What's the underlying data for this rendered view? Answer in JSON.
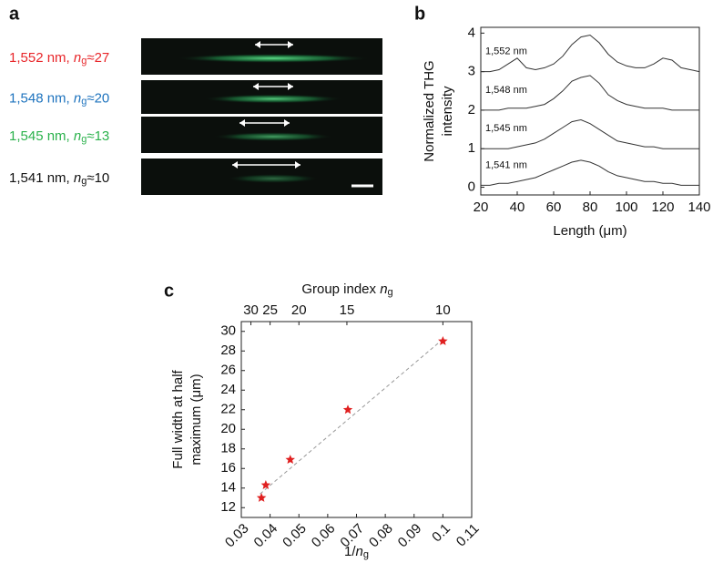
{
  "panel_a": {
    "label": "a",
    "rows": [
      {
        "text": "1,552 nm, ",
        "n": "n",
        "sub": "g",
        "approx": "≈27",
        "color": "#e8262a"
      },
      {
        "text": "1,548 nm, ",
        "n": "n",
        "sub": "g",
        "approx": "≈20",
        "color": "#1e73be"
      },
      {
        "text": "1,545 nm, ",
        "n": "n",
        "sub": "g",
        "approx": "≈13",
        "color": "#2bb24c"
      },
      {
        "text": "1,541 nm, ",
        "n": "n",
        "sub": "g",
        "approx": "≈10",
        "color": "#111111"
      }
    ]
  },
  "chart_data": [
    {
      "type": "line",
      "label": "b",
      "ylabel": [
        "Normalized THG",
        "intensity"
      ],
      "xlabel": "Length (μm)",
      "x": [
        20,
        25,
        30,
        35,
        40,
        45,
        50,
        55,
        60,
        65,
        70,
        75,
        80,
        85,
        90,
        95,
        100,
        105,
        110,
        115,
        120,
        125,
        130,
        135,
        140
      ],
      "xlim": [
        20,
        140
      ],
      "xticks": [
        20,
        40,
        60,
        80,
        100,
        120,
        140
      ],
      "ylim": [
        -0.2,
        4.15
      ],
      "yticks": [
        0,
        1,
        2,
        3,
        4
      ],
      "series": [
        {
          "name": "1,552 nm",
          "color": "#333333",
          "values": [
            3.0,
            3.0,
            3.05,
            3.2,
            3.35,
            3.1,
            3.05,
            3.1,
            3.2,
            3.4,
            3.7,
            3.9,
            3.95,
            3.75,
            3.45,
            3.25,
            3.15,
            3.1,
            3.1,
            3.2,
            3.35,
            3.3,
            3.1,
            3.05,
            3.0
          ]
        },
        {
          "name": "1,548 nm",
          "color": "#333333",
          "values": [
            2.0,
            2.0,
            2.0,
            2.05,
            2.05,
            2.05,
            2.1,
            2.15,
            2.3,
            2.5,
            2.75,
            2.85,
            2.9,
            2.7,
            2.4,
            2.25,
            2.15,
            2.1,
            2.05,
            2.05,
            2.05,
            2.0,
            2.0,
            2.0,
            2.0
          ]
        },
        {
          "name": "1,545 nm",
          "color": "#333333",
          "values": [
            1.0,
            1.0,
            1.0,
            1.0,
            1.05,
            1.1,
            1.15,
            1.25,
            1.4,
            1.55,
            1.7,
            1.75,
            1.65,
            1.5,
            1.35,
            1.2,
            1.15,
            1.1,
            1.05,
            1.05,
            1.0,
            1.0,
            1.0,
            1.0,
            1.0
          ]
        },
        {
          "name": "1,541 nm",
          "color": "#333333",
          "values": [
            0.05,
            0.05,
            0.1,
            0.1,
            0.15,
            0.2,
            0.25,
            0.35,
            0.45,
            0.55,
            0.65,
            0.7,
            0.65,
            0.55,
            0.4,
            0.3,
            0.25,
            0.2,
            0.15,
            0.15,
            0.1,
            0.1,
            0.05,
            0.05,
            0.05
          ]
        }
      ]
    },
    {
      "type": "scatter",
      "label": "c",
      "x2label": [
        "Group index ",
        "n",
        "g"
      ],
      "xlabel": [
        "1/",
        "n",
        "g"
      ],
      "ylabel": [
        "Full width at half",
        "maximum (μm)"
      ],
      "x": [
        0.037,
        0.0385,
        0.047,
        0.067,
        0.1
      ],
      "values": [
        13.0,
        14.3,
        16.9,
        22.0,
        29.0
      ],
      "color": "#e02020",
      "xlim": [
        0.03,
        0.11
      ],
      "xticks": [
        0.03,
        0.04,
        0.05,
        0.06,
        0.07,
        0.08,
        0.09,
        0.1,
        0.11
      ],
      "ylim": [
        11,
        31
      ],
      "yticks": [
        12,
        14,
        16,
        18,
        20,
        22,
        24,
        26,
        28,
        30
      ],
      "x2ticks": [
        30,
        25,
        20,
        15,
        10
      ],
      "x2scale": "reciprocal",
      "fit": {
        "x": [
          0.0365,
          0.1
        ],
        "y": [
          13.4,
          29.2
        ],
        "color": "#999999"
      }
    }
  ]
}
